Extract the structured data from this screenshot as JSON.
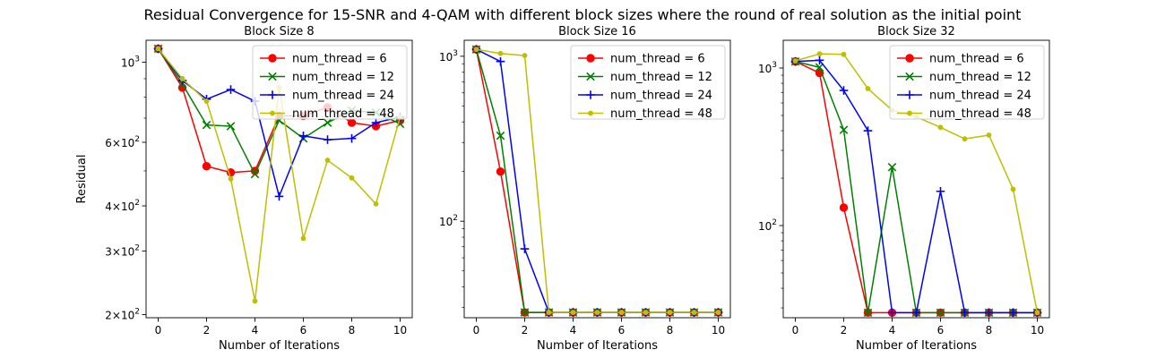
{
  "figure": {
    "suptitle": "Residual Convergence for 15-SNR and 4-QAM with different block sizes where the round of real solution as the initial point"
  },
  "legend_entries": [
    "num_thread = 6",
    "num_thread = 12",
    "num_thread = 24",
    "num_thread = 48"
  ],
  "series_colors": {
    "6": "#ff0000",
    "12": "#008000",
    "24": "#0000ff",
    "48": "#bfbf00"
  },
  "legend_placement": "top-right",
  "chart_data": [
    {
      "type": "line",
      "title": "Block Size 8",
      "xlabel": "Number of Iterations",
      "ylabel": "Residual",
      "yscale": "log",
      "xlim": [
        -0.5,
        10.5
      ],
      "ylim": [
        196,
        1150
      ],
      "x": [
        0,
        1,
        2,
        3,
        4,
        5,
        6,
        7,
        8,
        9,
        10
      ],
      "xticks": [
        0,
        2,
        4,
        6,
        8,
        10
      ],
      "yticks": [
        {
          "value": 1000,
          "base": "10",
          "exp": "3"
        },
        {
          "value": 600,
          "base": "6×10",
          "exp": "2"
        },
        {
          "value": 400,
          "base": "4×10",
          "exp": "2"
        },
        {
          "value": 300,
          "base": "3×10",
          "exp": "2"
        },
        {
          "value": 200,
          "base": "2×10",
          "exp": "2"
        }
      ],
      "series": [
        {
          "name": "num_thread = 6",
          "marker": "circle",
          "values": [
            1090,
            850,
            515,
            495,
            500,
            710,
            710,
            750,
            680,
            665,
            690
          ]
        },
        {
          "name": "num_thread = 12",
          "marker": "x",
          "values": [
            1090,
            870,
            670,
            665,
            490,
            690,
            615,
            680,
            735,
            725,
            675
          ]
        },
        {
          "name": "num_thread = 24",
          "marker": "plus",
          "values": [
            1090,
            890,
            790,
            840,
            780,
            425,
            625,
            610,
            615,
            680,
            705
          ]
        },
        {
          "name": "num_thread = 48",
          "marker": "dot",
          "values": [
            1090,
            900,
            780,
            475,
            218,
            850,
            325,
            535,
            478,
            405,
            705
          ]
        }
      ]
    },
    {
      "type": "line",
      "title": "Block Size 16",
      "xlabel": "Number of Iterations",
      "ylabel": "",
      "yscale": "log",
      "xlim": [
        -0.5,
        10.5
      ],
      "ylim": [
        26,
        1250
      ],
      "x": [
        0,
        1,
        2,
        3,
        4,
        5,
        6,
        7,
        8,
        9,
        10
      ],
      "xticks": [
        0,
        2,
        4,
        6,
        8,
        10
      ],
      "yticks": [
        {
          "value": 1000,
          "base": "10",
          "exp": "3"
        },
        {
          "value": 100,
          "base": "10",
          "exp": "2"
        }
      ],
      "series": [
        {
          "name": "num_thread = 6",
          "marker": "circle",
          "values": [
            1100,
            200,
            28,
            28,
            28,
            28,
            28,
            28,
            28,
            28,
            28
          ]
        },
        {
          "name": "num_thread = 12",
          "marker": "x",
          "values": [
            1100,
            330,
            28,
            28,
            28,
            28,
            28,
            28,
            28,
            28,
            28
          ]
        },
        {
          "name": "num_thread = 24",
          "marker": "plus",
          "values": [
            1100,
            930,
            68,
            28,
            28,
            28,
            28,
            28,
            28,
            28,
            28
          ]
        },
        {
          "name": "num_thread = 48",
          "marker": "dot",
          "values": [
            1100,
            1040,
            1010,
            28,
            28,
            28,
            28,
            28,
            28,
            28,
            28
          ]
        }
      ]
    },
    {
      "type": "line",
      "title": "Block Size 32",
      "xlabel": "Number of Iterations",
      "ylabel": "",
      "yscale": "log",
      "xlim": [
        -0.5,
        10.5
      ],
      "ylim": [
        26,
        1500
      ],
      "x": [
        0,
        1,
        2,
        3,
        4,
        5,
        6,
        7,
        8,
        9,
        10
      ],
      "xticks": [
        0,
        2,
        4,
        6,
        8,
        10
      ],
      "yticks": [
        {
          "value": 1000,
          "base": "10",
          "exp": "3"
        },
        {
          "value": 100,
          "base": "10",
          "exp": "2"
        }
      ],
      "series": [
        {
          "name": "num_thread = 6",
          "marker": "circle",
          "values": [
            1100,
            930,
            130,
            28,
            28,
            28,
            28,
            28,
            28,
            28,
            28
          ]
        },
        {
          "name": "num_thread = 12",
          "marker": "x",
          "values": [
            1100,
            1010,
            405,
            28,
            235,
            28,
            28,
            28,
            28,
            28,
            28
          ]
        },
        {
          "name": "num_thread = 24",
          "marker": "plus",
          "values": [
            1100,
            1120,
            720,
            400,
            28,
            28,
            165,
            28,
            28,
            28,
            28
          ]
        },
        {
          "name": "num_thread = 48",
          "marker": "dot",
          "values": [
            1110,
            1230,
            1220,
            740,
            540,
            490,
            420,
            355,
            375,
            170,
            28
          ]
        }
      ]
    }
  ]
}
